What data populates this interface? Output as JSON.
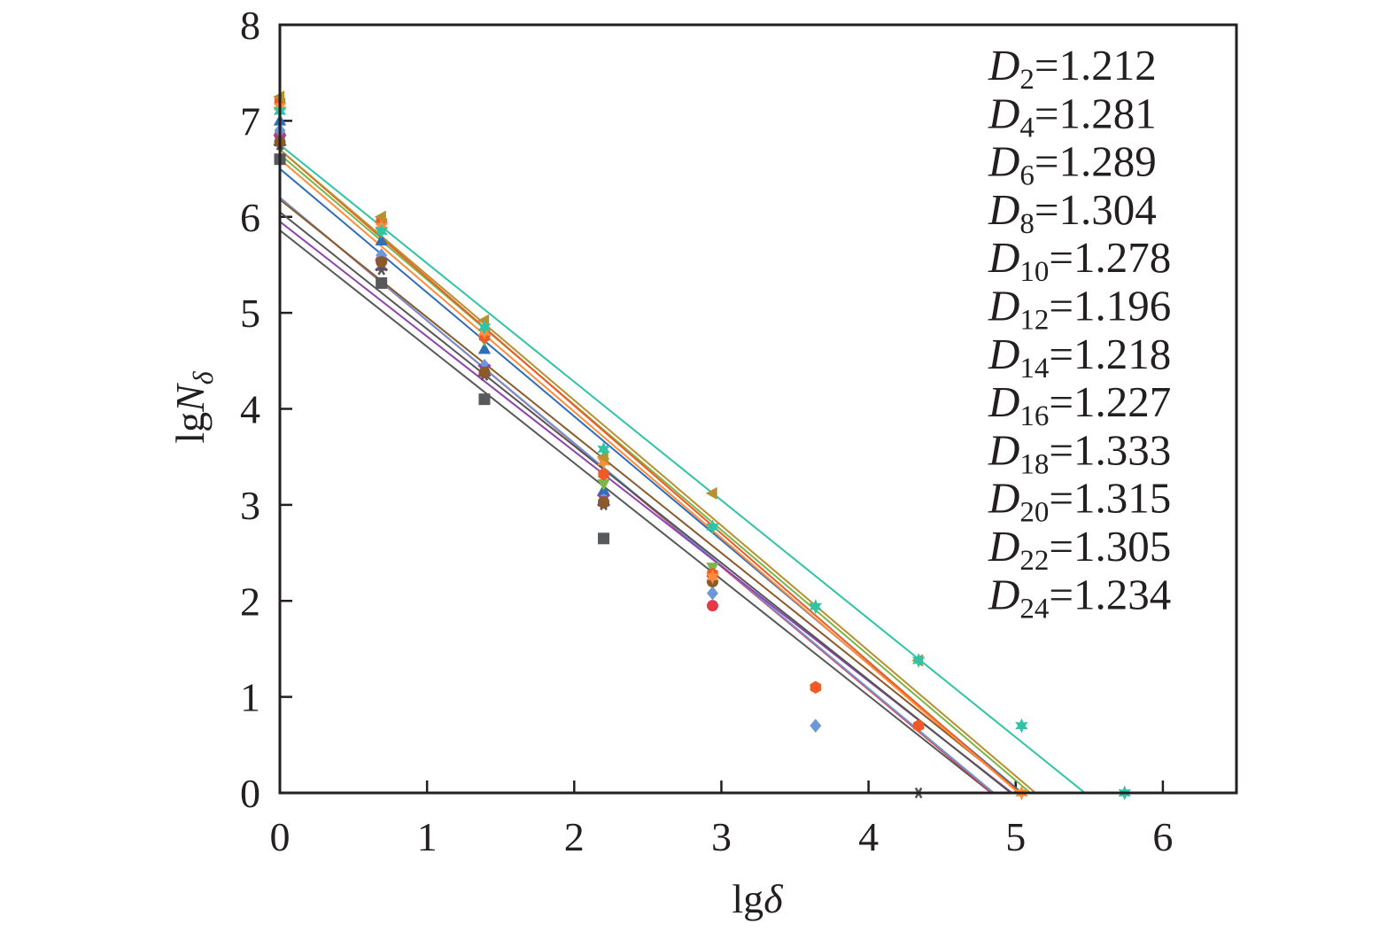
{
  "chart_data": {
    "type": "scatter",
    "title": "",
    "xlabel": {
      "main": "lg",
      "italic": "δ"
    },
    "ylabel": {
      "main": "lg",
      "italic": "N",
      "sub": "δ"
    },
    "xlim": [
      0,
      6.5
    ],
    "ylim": [
      0,
      8
    ],
    "xticks": [
      0,
      1,
      2,
      3,
      4,
      5,
      6
    ],
    "yticks": [
      0,
      1,
      2,
      3,
      4,
      5,
      6,
      7,
      8
    ],
    "grid": false,
    "legend_position": "top-right",
    "legend": [
      {
        "symbol": "D",
        "sub": "2",
        "eq": "=1.212"
      },
      {
        "symbol": "D",
        "sub": "4",
        "eq": "=1.281"
      },
      {
        "symbol": "D",
        "sub": "6",
        "eq": "=1.289"
      },
      {
        "symbol": "D",
        "sub": "8",
        "eq": "=1.304"
      },
      {
        "symbol": "D",
        "sub": "10",
        "eq": "=1.278"
      },
      {
        "symbol": "D",
        "sub": "12",
        "eq": "=1.196"
      },
      {
        "symbol": "D",
        "sub": "14",
        "eq": "=1.218"
      },
      {
        "symbol": "D",
        "sub": "16",
        "eq": "=1.227"
      },
      {
        "symbol": "D",
        "sub": "18",
        "eq": "=1.333"
      },
      {
        "symbol": "D",
        "sub": "20",
        "eq": "=1.315"
      },
      {
        "symbol": "D",
        "sub": "22",
        "eq": "=1.305"
      },
      {
        "symbol": "D",
        "sub": "24",
        "eq": "=1.234"
      }
    ],
    "series": [
      {
        "color": "#58595b",
        "marker": "square",
        "intercept": 5.86,
        "slope": -1.212,
        "x": [
          0,
          0.69,
          1.39,
          2.2
        ],
        "y": [
          6.6,
          5.31,
          4.1,
          2.65
        ]
      },
      {
        "color": "#e63946",
        "marker": "circle",
        "intercept": 6.2,
        "slope": -1.281,
        "x": [
          0,
          0.69,
          1.39,
          2.2,
          2.94
        ],
        "y": [
          6.85,
          5.55,
          4.38,
          3.02,
          1.95
        ]
      },
      {
        "color": "#2f6fb8",
        "marker": "triangle",
        "intercept": 6.5,
        "slope": -1.289,
        "x": [
          0,
          0.69,
          1.39,
          2.2,
          2.94
        ],
        "y": [
          7.0,
          5.75,
          4.62,
          3.15,
          2.3
        ]
      },
      {
        "color": "#7ab648",
        "marker": "triangle-down",
        "intercept": 6.65,
        "slope": -1.304,
        "x": [
          0,
          0.69,
          1.39,
          2.2,
          2.94
        ],
        "y": [
          7.1,
          5.85,
          4.72,
          3.22,
          2.35
        ]
      },
      {
        "color": "#6d97d6",
        "marker": "diamond",
        "intercept": 6.2,
        "slope": -1.278,
        "x": [
          0,
          0.69,
          1.39,
          2.2,
          2.94,
          3.64
        ],
        "y": [
          6.9,
          5.6,
          4.45,
          3.05,
          2.08,
          0.7
        ]
      },
      {
        "color": "#8e44ad",
        "marker": "x",
        "intercept": 5.95,
        "slope": -1.196,
        "x": [
          0,
          0.69,
          1.39,
          2.2
        ],
        "y": [
          6.8,
          5.5,
          4.4,
          3.05
        ]
      },
      {
        "color": "#555555",
        "marker": "asterisk",
        "intercept": 6.05,
        "slope": -1.218,
        "x": [
          0,
          0.69,
          1.39,
          2.2,
          4.34
        ],
        "y": [
          6.75,
          5.45,
          4.35,
          3.0,
          0.0
        ]
      },
      {
        "color": "#8b5a2b",
        "marker": "circle",
        "intercept": 6.18,
        "slope": -1.227,
        "x": [
          0,
          0.69,
          1.39,
          2.2,
          2.94
        ],
        "y": [
          6.78,
          5.53,
          4.38,
          3.03,
          2.2
        ]
      },
      {
        "color": "#f15a24",
        "marker": "hexagon",
        "intercept": 6.7,
        "slope": -1.333,
        "x": [
          0,
          0.69,
          1.39,
          2.2,
          2.94,
          3.64,
          4.34
        ],
        "y": [
          7.2,
          5.95,
          4.75,
          3.32,
          2.28,
          1.1,
          0.7
        ]
      },
      {
        "color": "#ff8c3a",
        "marker": "star",
        "intercept": 6.6,
        "slope": -1.315,
        "x": [
          0,
          0.69,
          1.39,
          2.2,
          2.94,
          5.04
        ],
        "y": [
          7.15,
          5.9,
          4.8,
          3.45,
          2.25,
          0.0
        ]
      },
      {
        "color": "#b8902e",
        "marker": "triangle-left",
        "intercept": 6.7,
        "slope": -1.305,
        "x": [
          0,
          0.69,
          1.39,
          2.2,
          2.94,
          4.34
        ],
        "y": [
          7.25,
          6.0,
          4.92,
          3.5,
          3.12,
          1.38
        ]
      },
      {
        "color": "#2ec4a5",
        "marker": "star",
        "intercept": 6.75,
        "slope": -1.234,
        "x": [
          0,
          0.69,
          1.39,
          2.2,
          2.94,
          3.64,
          4.34,
          5.04,
          5.74
        ],
        "y": [
          7.1,
          5.85,
          4.85,
          3.58,
          2.77,
          1.94,
          1.38,
          0.7,
          0.0
        ]
      }
    ]
  }
}
